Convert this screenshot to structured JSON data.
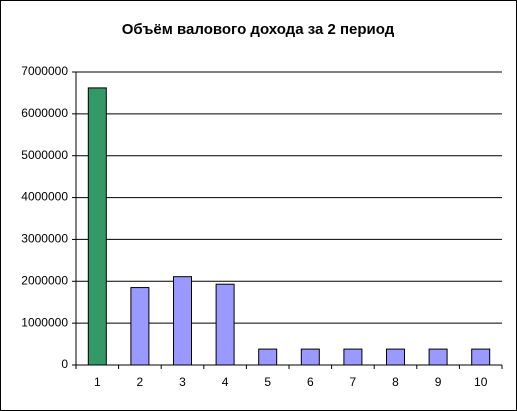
{
  "chart_data": {
    "type": "bar",
    "title": "Объём валового дохода за 2 период",
    "categories": [
      "1",
      "2",
      "3",
      "4",
      "5",
      "6",
      "7",
      "8",
      "9",
      "10"
    ],
    "values": [
      6620000,
      1850000,
      2110000,
      1930000,
      380000,
      380000,
      380000,
      380000,
      380000,
      380000
    ],
    "colors": [
      "#339966",
      "#9999ff",
      "#9999ff",
      "#9999ff",
      "#9999ff",
      "#9999ff",
      "#9999ff",
      "#9999ff",
      "#9999ff",
      "#9999ff"
    ],
    "ylim": [
      0,
      7000000
    ],
    "yticks": [
      0,
      1000000,
      2000000,
      3000000,
      4000000,
      5000000,
      6000000,
      7000000
    ],
    "grid": true
  }
}
